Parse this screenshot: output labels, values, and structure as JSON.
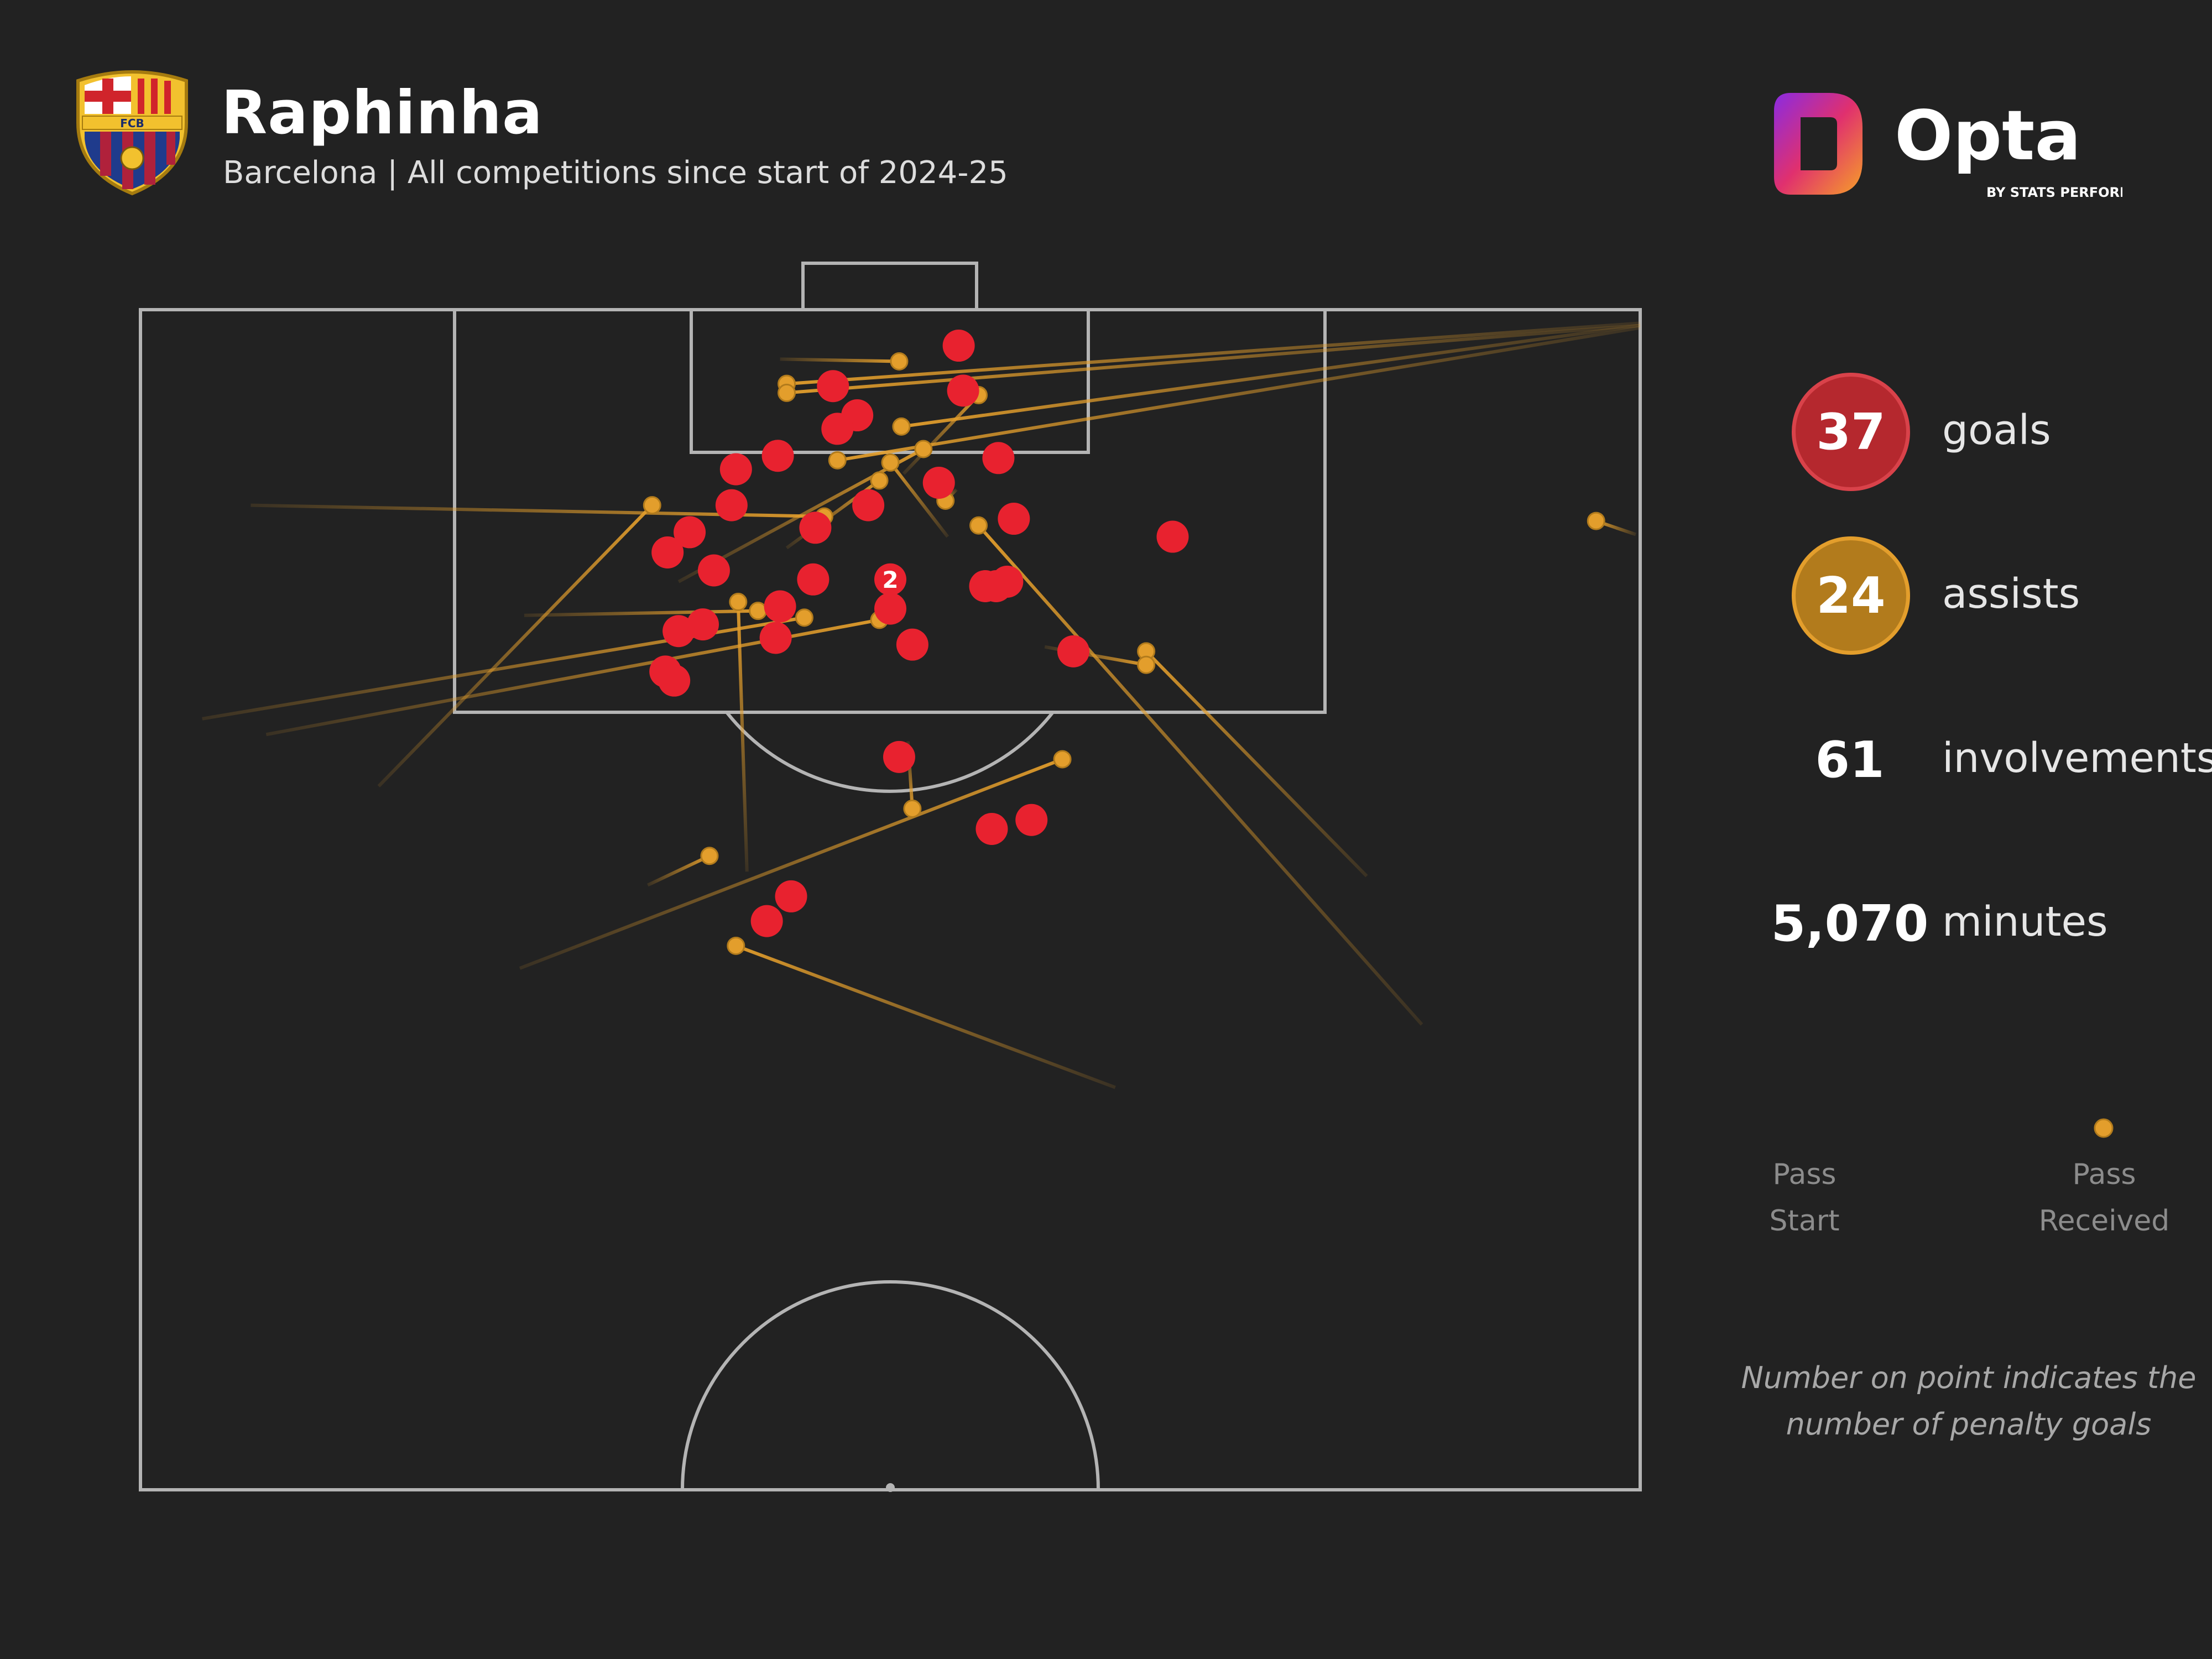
{
  "header": {
    "title": "Raphinha",
    "subtitle": "Barcelona | All competitions since start of 2024-25"
  },
  "crest": {
    "initials": "FCB"
  },
  "logo": {
    "name": "Opta",
    "tagline": "BY STATS PERFORM"
  },
  "stats": {
    "goals": {
      "value": "37",
      "label": "goals"
    },
    "assists": {
      "value": "24",
      "label": "assists"
    },
    "involvements": {
      "value": "61",
      "label": "involvements"
    },
    "minutes": {
      "value": "5,070",
      "label": "minutes"
    }
  },
  "legend": {
    "start": "Pass Start",
    "end": "Pass Received"
  },
  "note": "Number on point indicates the number of penalty goals",
  "colors": {
    "background": "#222222",
    "pitch_lines": "#b4b4b4",
    "goal": "#e8222f",
    "assist": "#e39e2c"
  },
  "chart_data": {
    "type": "scatter",
    "description_units": "pitch coordinates in metres: x = distance from left touchline (0-68), y = distance from the attacked goal line (0-52.5)",
    "goals": [
      {
        "x": 37.1,
        "y": 1.6
      },
      {
        "x": 31.4,
        "y": 3.4
      },
      {
        "x": 37.3,
        "y": 3.6
      },
      {
        "x": 32.5,
        "y": 4.7
      },
      {
        "x": 31.6,
        "y": 5.3
      },
      {
        "x": 28.9,
        "y": 6.5
      },
      {
        "x": 38.9,
        "y": 6.6
      },
      {
        "x": 27.0,
        "y": 7.1
      },
      {
        "x": 36.2,
        "y": 7.7
      },
      {
        "x": 33.0,
        "y": 8.7
      },
      {
        "x": 26.8,
        "y": 8.7
      },
      {
        "x": 39.6,
        "y": 9.3
      },
      {
        "x": 30.6,
        "y": 9.7
      },
      {
        "x": 24.9,
        "y": 9.9
      },
      {
        "x": 46.8,
        "y": 10.1
      },
      {
        "x": 23.9,
        "y": 10.8
      },
      {
        "x": 26.0,
        "y": 11.6
      },
      {
        "x": 30.5,
        "y": 12.0
      },
      {
        "x": 34.0,
        "y": 12.0,
        "penalties": 2
      },
      {
        "x": 38.3,
        "y": 12.3
      },
      {
        "x": 38.8,
        "y": 12.3
      },
      {
        "x": 39.3,
        "y": 12.1
      },
      {
        "x": 29.0,
        "y": 13.2
      },
      {
        "x": 34.0,
        "y": 13.3
      },
      {
        "x": 25.5,
        "y": 14.0
      },
      {
        "x": 24.4,
        "y": 14.3
      },
      {
        "x": 28.8,
        "y": 14.6
      },
      {
        "x": 35.0,
        "y": 14.9
      },
      {
        "x": 42.3,
        "y": 15.2
      },
      {
        "x": 23.8,
        "y": 16.1
      },
      {
        "x": 24.2,
        "y": 16.5
      },
      {
        "x": 34.4,
        "y": 19.9
      },
      {
        "x": 38.6,
        "y": 23.1
      },
      {
        "x": 40.4,
        "y": 22.7
      },
      {
        "x": 29.5,
        "y": 26.1
      },
      {
        "x": 28.4,
        "y": 27.2
      }
    ],
    "assists": [
      {
        "start_x": 29.0,
        "start_y": 2.2,
        "end_x": 34.4,
        "end_y": 2.3
      },
      {
        "start_x": 68.0,
        "start_y": 0.6,
        "end_x": 29.3,
        "end_y": 3.3
      },
      {
        "start_x": 68.0,
        "start_y": 0.7,
        "end_x": 29.3,
        "end_y": 3.7
      },
      {
        "start_x": 34.6,
        "start_y": 7.3,
        "end_x": 38.0,
        "end_y": 3.8
      },
      {
        "start_x": 68.0,
        "start_y": 0.7,
        "end_x": 34.5,
        "end_y": 5.2
      },
      {
        "start_x": 68.0,
        "start_y": 0.8,
        "end_x": 31.6,
        "end_y": 6.7
      },
      {
        "start_x": 24.4,
        "start_y": 12.1,
        "end_x": 35.5,
        "end_y": 6.2
      },
      {
        "start_x": 36.6,
        "start_y": 10.1,
        "end_x": 34.0,
        "end_y": 6.8
      },
      {
        "start_x": 29.3,
        "start_y": 10.6,
        "end_x": 33.5,
        "end_y": 7.6
      },
      {
        "start_x": 37.0,
        "start_y": 8.0,
        "end_x": 36.5,
        "end_y": 8.5
      },
      {
        "start_x": 5.0,
        "start_y": 8.7,
        "end_x": 31.0,
        "end_y": 9.2
      },
      {
        "start_x": 10.8,
        "start_y": 21.2,
        "end_x": 23.2,
        "end_y": 8.7
      },
      {
        "start_x": 67.8,
        "start_y": 10.0,
        "end_x": 66.0,
        "end_y": 9.4
      },
      {
        "start_x": 17.4,
        "start_y": 13.6,
        "end_x": 28.0,
        "end_y": 13.4
      },
      {
        "start_x": 5.7,
        "start_y": 18.9,
        "end_x": 33.5,
        "end_y": 13.8
      },
      {
        "start_x": 2.8,
        "start_y": 18.2,
        "end_x": 30.1,
        "end_y": 13.7
      },
      {
        "start_x": 27.5,
        "start_y": 25.0,
        "end_x": 27.1,
        "end_y": 13.0
      },
      {
        "start_x": 55.6,
        "start_y": 25.2,
        "end_x": 45.6,
        "end_y": 15.2
      },
      {
        "start_x": 58.1,
        "start_y": 31.8,
        "end_x": 38.0,
        "end_y": 9.6
      },
      {
        "start_x": 41.0,
        "start_y": 15.0,
        "end_x": 45.6,
        "end_y": 15.8
      },
      {
        "start_x": 17.2,
        "start_y": 29.3,
        "end_x": 41.8,
        "end_y": 20.0
      },
      {
        "start_x": 34.8,
        "start_y": 19.2,
        "end_x": 35.0,
        "end_y": 22.2
      },
      {
        "start_x": 23.0,
        "start_y": 25.6,
        "end_x": 25.8,
        "end_y": 24.3
      },
      {
        "start_x": 44.2,
        "start_y": 34.6,
        "end_x": 27.0,
        "end_y": 28.3
      }
    ]
  }
}
